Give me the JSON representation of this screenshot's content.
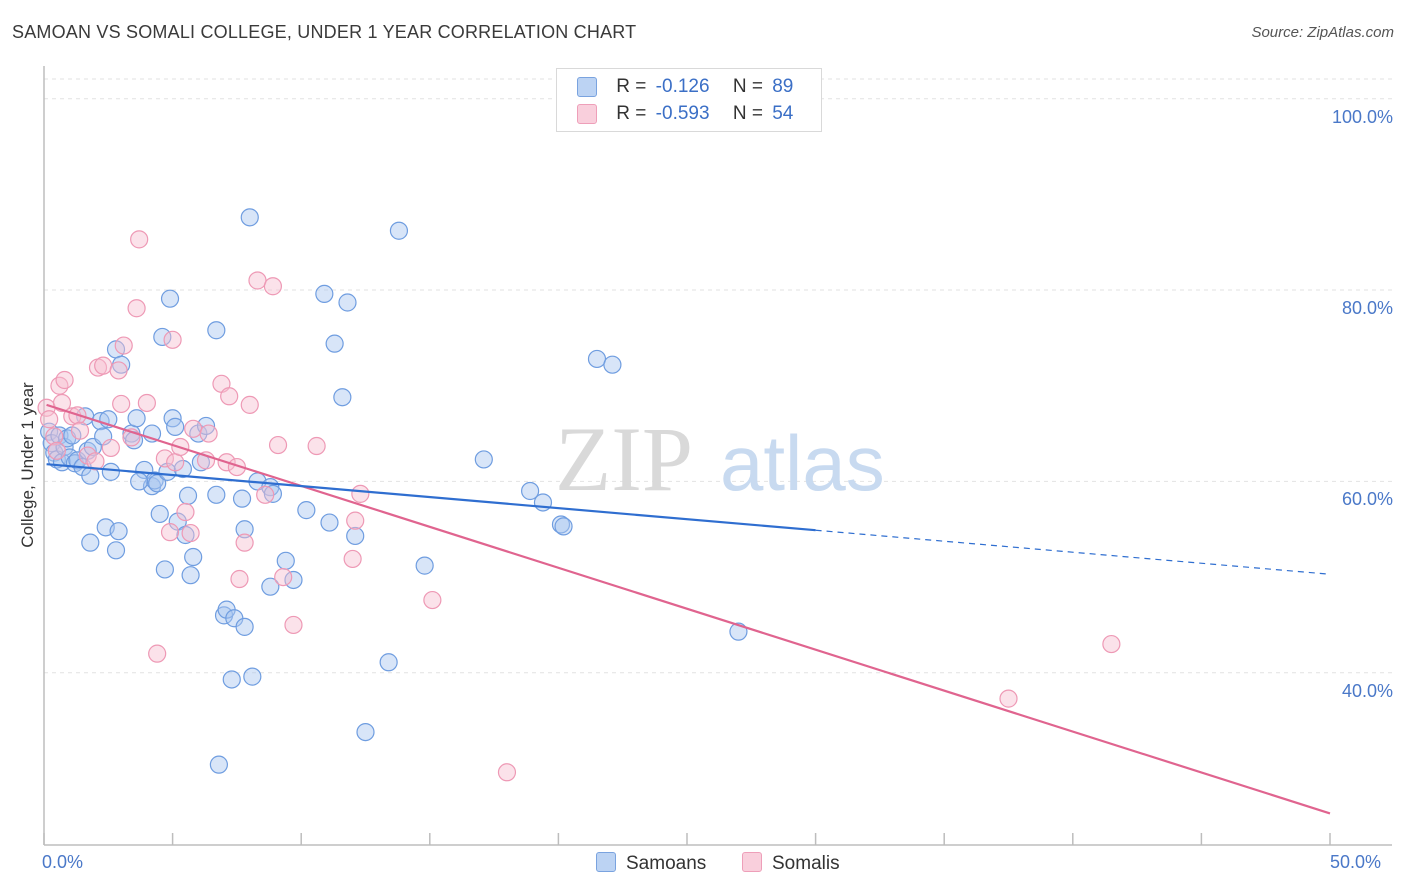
{
  "header": {
    "title": "SAMOAN VS SOMALI COLLEGE, UNDER 1 YEAR CORRELATION CHART",
    "source": "Source: ZipAtlas.com"
  },
  "watermark": {
    "part1": "ZIP",
    "part2": "atlas"
  },
  "legend": {
    "row1": {
      "r_label": "R =",
      "r_value": "-0.126",
      "n_label": "N =",
      "n_value": "89"
    },
    "row2": {
      "r_label": "R =",
      "r_value": "-0.593",
      "n_label": "N =",
      "n_value": "54"
    }
  },
  "bottom_legend": {
    "samoans": "Samoans",
    "somalis": "Somalis"
  },
  "colors": {
    "samoan_fill": "#a9c6ef",
    "samoan_stroke": "#6f9de0",
    "samoan_line": "#2f6ed0",
    "somali_fill": "#f7bfd0",
    "somali_stroke": "#ee99b5",
    "somali_line": "#e0648f",
    "tick_label": "#4a78c8",
    "grid": "#e2e2e2"
  },
  "chart_data": {
    "type": "scatter",
    "title": "SAMOAN VS SOMALI COLLEGE, UNDER 1 YEAR CORRELATION CHART",
    "xlabel": "",
    "ylabel": "College, Under 1 year",
    "xlim": [
      0,
      50
    ],
    "ylim": [
      22,
      103
    ],
    "x_tick_labels": [
      "0.0%",
      "50.0%"
    ],
    "y_ticks": [
      40,
      60,
      80,
      100
    ],
    "y_tick_labels": [
      "40.0%",
      "60.0%",
      "80.0%",
      "100.0%"
    ],
    "grid": true,
    "legend_position": "top-center",
    "series": [
      {
        "name": "Samoans",
        "r": -0.126,
        "n": 89,
        "trend": {
          "x0": 0.1,
          "y0": 61.8,
          "x1": 30.0,
          "y1": 54.9,
          "dashed_to_x": 50.0,
          "dashed_to_y": 50.3
        },
        "points": [
          [
            0.2,
            65.2
          ],
          [
            0.3,
            64.0
          ],
          [
            0.4,
            63.0
          ],
          [
            0.5,
            62.3
          ],
          [
            0.6,
            64.8
          ],
          [
            0.7,
            62.0
          ],
          [
            0.8,
            63.6
          ],
          [
            0.9,
            64.5
          ],
          [
            1.0,
            62.5
          ],
          [
            1.1,
            64.8
          ],
          [
            1.2,
            61.9
          ],
          [
            1.3,
            62.2
          ],
          [
            1.5,
            61.5
          ],
          [
            1.6,
            66.8
          ],
          [
            1.7,
            63.2
          ],
          [
            1.8,
            60.6
          ],
          [
            1.9,
            63.6
          ],
          [
            2.2,
            66.3
          ],
          [
            2.3,
            64.7
          ],
          [
            2.5,
            66.5
          ],
          [
            2.6,
            61.0
          ],
          [
            2.8,
            73.8
          ],
          [
            3.0,
            72.2
          ],
          [
            3.4,
            65.0
          ],
          [
            3.5,
            64.3
          ],
          [
            3.6,
            66.6
          ],
          [
            3.9,
            61.2
          ],
          [
            4.2,
            59.5
          ],
          [
            4.3,
            60.1
          ],
          [
            4.4,
            59.8
          ],
          [
            4.6,
            75.1
          ],
          [
            4.8,
            61.0
          ],
          [
            4.9,
            79.1
          ],
          [
            5.0,
            66.6
          ],
          [
            5.1,
            65.7
          ],
          [
            5.4,
            61.3
          ],
          [
            5.6,
            58.5
          ],
          [
            6.1,
            62.0
          ],
          [
            6.0,
            65.0
          ],
          [
            6.3,
            65.8
          ],
          [
            6.7,
            75.8
          ],
          [
            6.7,
            58.6
          ],
          [
            7.0,
            46.0
          ],
          [
            7.1,
            46.6
          ],
          [
            7.4,
            45.7
          ],
          [
            7.8,
            44.8
          ],
          [
            8.1,
            39.6
          ],
          [
            8.0,
            87.6
          ],
          [
            8.3,
            60.0
          ],
          [
            8.8,
            59.4
          ],
          [
            8.9,
            58.7
          ],
          [
            9.4,
            51.7
          ],
          [
            10.2,
            57.0
          ],
          [
            10.9,
            79.6
          ],
          [
            11.1,
            55.7
          ],
          [
            11.3,
            74.4
          ],
          [
            11.6,
            68.8
          ],
          [
            11.8,
            78.7
          ],
          [
            12.1,
            54.3
          ],
          [
            12.5,
            33.8
          ],
          [
            13.8,
            86.2
          ],
          [
            13.4,
            41.1
          ],
          [
            14.8,
            51.2
          ],
          [
            17.1,
            62.3
          ],
          [
            18.9,
            59.0
          ],
          [
            19.4,
            57.8
          ],
          [
            20.1,
            55.5
          ],
          [
            20.2,
            55.3
          ],
          [
            21.5,
            72.8
          ],
          [
            22.1,
            72.2
          ],
          [
            27.0,
            44.3
          ],
          [
            4.2,
            65.0
          ],
          [
            3.7,
            60.0
          ],
          [
            2.4,
            55.2
          ],
          [
            1.8,
            53.6
          ],
          [
            2.8,
            52.8
          ],
          [
            2.9,
            54.8
          ],
          [
            4.5,
            56.6
          ],
          [
            5.2,
            55.8
          ],
          [
            5.5,
            54.4
          ],
          [
            5.8,
            52.1
          ],
          [
            4.7,
            50.8
          ],
          [
            5.7,
            50.2
          ],
          [
            7.7,
            58.2
          ],
          [
            7.8,
            55.0
          ],
          [
            8.8,
            49.0
          ],
          [
            9.7,
            49.7
          ],
          [
            7.3,
            39.3
          ],
          [
            6.8,
            30.4
          ]
        ]
      },
      {
        "name": "Somalis",
        "r": -0.593,
        "n": 54,
        "trend": {
          "x0": 0.1,
          "y0": 68.0,
          "x1": 50.0,
          "y1": 25.3
        },
        "points": [
          [
            0.1,
            67.7
          ],
          [
            0.2,
            66.5
          ],
          [
            0.4,
            64.7
          ],
          [
            0.5,
            63.2
          ],
          [
            0.6,
            70.0
          ],
          [
            0.7,
            68.2
          ],
          [
            0.8,
            70.6
          ],
          [
            1.1,
            66.8
          ],
          [
            1.3,
            66.9
          ],
          [
            1.7,
            62.7
          ],
          [
            2.0,
            62.1
          ],
          [
            2.1,
            71.9
          ],
          [
            2.3,
            72.1
          ],
          [
            2.6,
            63.5
          ],
          [
            2.9,
            71.6
          ],
          [
            3.0,
            68.1
          ],
          [
            3.1,
            74.2
          ],
          [
            3.4,
            64.6
          ],
          [
            3.6,
            78.1
          ],
          [
            3.7,
            85.3
          ],
          [
            4.0,
            68.2
          ],
          [
            4.4,
            42.0
          ],
          [
            4.7,
            62.4
          ],
          [
            4.9,
            54.7
          ],
          [
            5.0,
            74.8
          ],
          [
            5.1,
            62.0
          ],
          [
            5.3,
            63.6
          ],
          [
            5.5,
            56.8
          ],
          [
            5.7,
            54.6
          ],
          [
            5.8,
            65.5
          ],
          [
            6.3,
            62.2
          ],
          [
            6.4,
            65.0
          ],
          [
            6.9,
            70.2
          ],
          [
            7.1,
            62.0
          ],
          [
            7.2,
            68.9
          ],
          [
            7.5,
            61.5
          ],
          [
            7.6,
            49.8
          ],
          [
            7.8,
            53.6
          ],
          [
            8.0,
            68.0
          ],
          [
            8.3,
            81.0
          ],
          [
            8.6,
            58.6
          ],
          [
            8.9,
            80.4
          ],
          [
            9.1,
            63.8
          ],
          [
            9.3,
            50.0
          ],
          [
            9.7,
            45.0
          ],
          [
            10.6,
            63.7
          ],
          [
            12.0,
            51.9
          ],
          [
            12.1,
            55.9
          ],
          [
            12.3,
            58.7
          ],
          [
            15.1,
            47.6
          ],
          [
            18.0,
            29.6
          ],
          [
            37.5,
            37.3
          ],
          [
            41.5,
            43.0
          ],
          [
            1.4,
            65.3
          ]
        ]
      }
    ]
  }
}
